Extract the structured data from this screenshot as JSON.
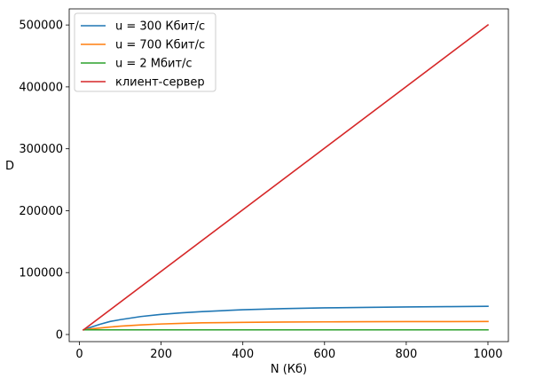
{
  "chart_data": {
    "type": "line",
    "title": "",
    "xlabel": "N (Кб)",
    "ylabel": "D",
    "xlim": [
      -25,
      1050
    ],
    "ylim": [
      -11500,
      526000
    ],
    "xticks": [
      0,
      200,
      400,
      600,
      800,
      1000
    ],
    "yticks": [
      0,
      100000,
      200000,
      300000,
      400000,
      500000
    ],
    "grid": false,
    "legend_position": "top-left",
    "series": [
      {
        "name": "u = 300 Кбит/с",
        "color": "#1f77b4",
        "x": [
          10,
          25,
          50,
          75,
          100,
          150,
          200,
          250,
          300,
          400,
          500,
          600,
          700,
          800,
          900,
          1000
        ],
        "y": [
          7500,
          11000,
          16500,
          21000,
          24000,
          29000,
          32500,
          35000,
          37000,
          40000,
          41800,
          43000,
          43800,
          44500,
          45000,
          45500
        ]
      },
      {
        "name": "u = 700 Кбит/с",
        "color": "#ff7f0e",
        "x": [
          10,
          25,
          50,
          75,
          100,
          150,
          200,
          250,
          300,
          400,
          500,
          600,
          700,
          800,
          900,
          1000
        ],
        "y": [
          7500,
          8800,
          10500,
          12000,
          13500,
          15500,
          17000,
          18000,
          18800,
          19600,
          20100,
          20400,
          20600,
          20800,
          20900,
          21000
        ]
      },
      {
        "name": "u = 2 Мбит/с",
        "color": "#2ca02c",
        "x": [
          10,
          100,
          200,
          400,
          600,
          800,
          1000
        ],
        "y": [
          7500,
          7500,
          7500,
          7500,
          7500,
          7500,
          7500
        ]
      },
      {
        "name": "клиент-сервер",
        "color": "#d62728",
        "x": [
          10,
          1000
        ],
        "y": [
          7500,
          500000
        ]
      }
    ]
  }
}
